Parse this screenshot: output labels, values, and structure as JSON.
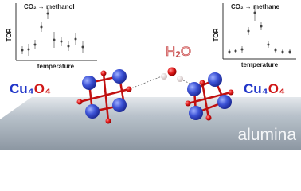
{
  "inset_left": {
    "title": "CO₂ → methanol",
    "y_label": "TOR",
    "x_label": "temperature"
  },
  "inset_right": {
    "title": "CO₂ → methane",
    "y_label": "TOR",
    "x_label": "temperature"
  },
  "molecule_label": "H₂O",
  "cluster_left": [
    "Cu₄",
    "O₄"
  ],
  "cluster_right": [
    "Cu₄",
    "O₄"
  ],
  "support_label": "alumina"
}
